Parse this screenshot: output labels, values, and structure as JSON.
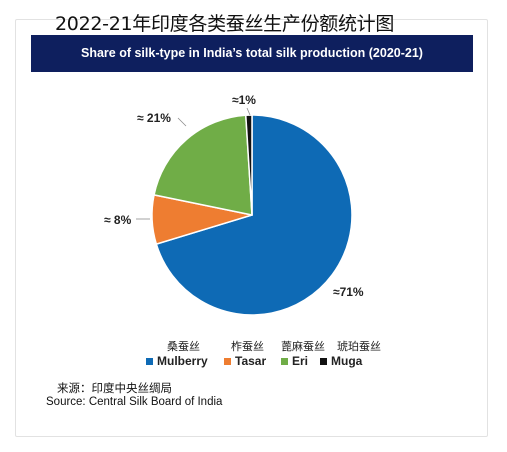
{
  "page_title": "2022-21年印度各类蚕丝生产份额统计图",
  "banner_title": "Share of silk-type in India’s total silk production (2020-21)",
  "chart_data": {
    "type": "pie",
    "title": "Share of silk-type in India’s total silk production (2020-21)",
    "categories": [
      "Mulberry",
      "Tasar",
      "Eri",
      "Muga"
    ],
    "categories_cn": [
      "桑蚕丝",
      "柞蚕丝",
      "蓖麻蚕丝",
      "琥珀蚕丝"
    ],
    "values": [
      71,
      8,
      21,
      1
    ],
    "data_labels": [
      "≈71%",
      "≈ 8%",
      "≈ 21%",
      "≈1%"
    ],
    "colors": [
      "#0e6ab5",
      "#ee7d31",
      "#70ad47",
      "#111111"
    ],
    "legend_position": "bottom"
  },
  "source_cn": "来源：印度中央丝绸局",
  "source_en": "Source: Central Silk Board of India"
}
